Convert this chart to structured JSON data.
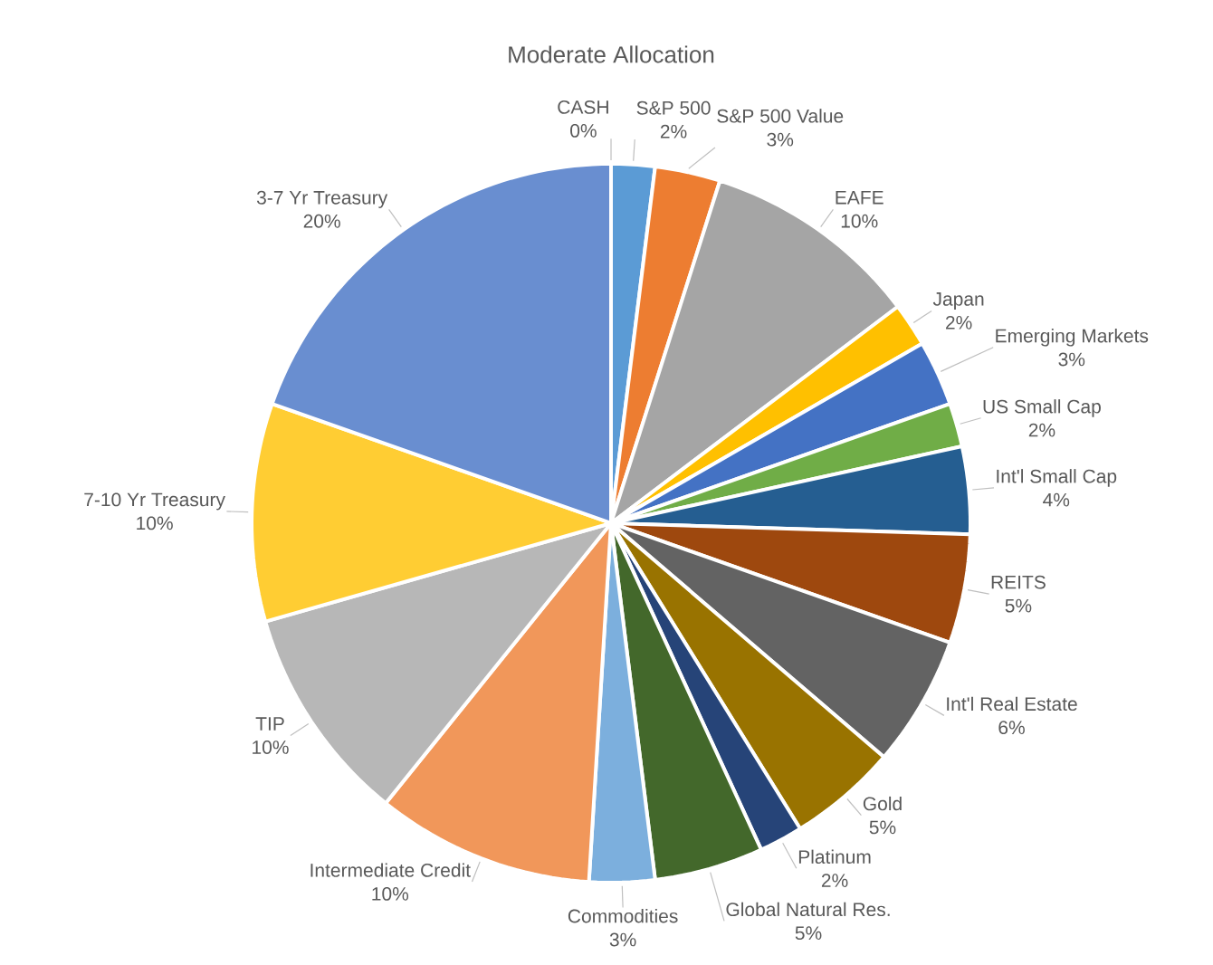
{
  "chart_data": {
    "type": "pie",
    "title": "Moderate Allocation",
    "categories": [
      "CASH",
      "S&P 500",
      "S&P 500 Value",
      "EAFE",
      "Japan",
      "Emerging Markets",
      "US Small Cap",
      "Int'l Small Cap",
      "REITS",
      "Int'l Real Estate",
      "Gold",
      "Platinum",
      "Global Natural Res.",
      "Commodities",
      "Intermediate Credit",
      "TIP",
      "7-10 Yr Treasury",
      "3-7 Yr Treasury"
    ],
    "values": [
      0,
      2,
      3,
      10,
      2,
      3,
      2,
      4,
      5,
      6,
      5,
      2,
      5,
      3,
      10,
      10,
      10,
      20
    ],
    "value_labels": [
      "0%",
      "2%",
      "3%",
      "10%",
      "2%",
      "3%",
      "2%",
      "4%",
      "5%",
      "6%",
      "5%",
      "2%",
      "5%",
      "3%",
      "10%",
      "10%",
      "10%",
      "20%"
    ],
    "colors": [
      "#a5a5a5",
      "#5b9bd5",
      "#ed7d31",
      "#a5a5a5",
      "#ffc000",
      "#4472c4",
      "#70ad47",
      "#255e91",
      "#9e480e",
      "#636363",
      "#997300",
      "#264478",
      "#43682b",
      "#7cafdd",
      "#f1975a",
      "#b7b7b7",
      "#ffcd33",
      "#698ed0"
    ]
  }
}
